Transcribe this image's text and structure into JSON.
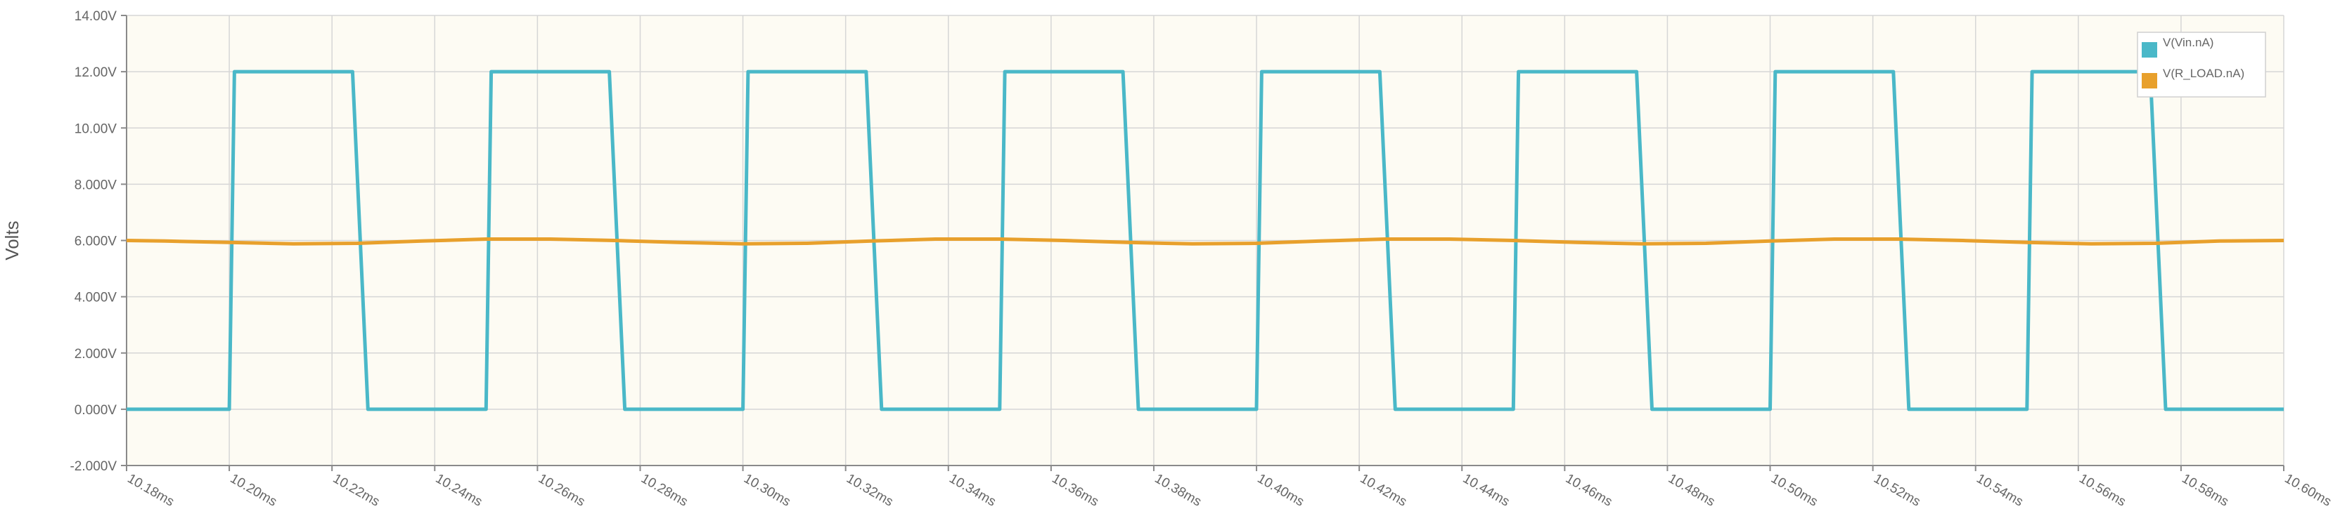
{
  "chart_data": {
    "type": "line",
    "title": "",
    "xlabel": "",
    "ylabel": "Volts",
    "xlim": [
      10.18,
      10.6
    ],
    "ylim": [
      -2.0,
      14.0
    ],
    "x_unit": "ms",
    "x_ticks": [
      10.18,
      10.2,
      10.22,
      10.24,
      10.26,
      10.28,
      10.3,
      10.32,
      10.34,
      10.36,
      10.38,
      10.4,
      10.42,
      10.44,
      10.46,
      10.48,
      10.5,
      10.52,
      10.54,
      10.56,
      10.58,
      10.6
    ],
    "x_tick_labels": [
      "10.18ms",
      "10.20ms",
      "10.22ms",
      "10.24ms",
      "10.26ms",
      "10.28ms",
      "10.30ms",
      "10.32ms",
      "10.34ms",
      "10.36ms",
      "10.38ms",
      "10.40ms",
      "10.42ms",
      "10.44ms",
      "10.46ms",
      "10.48ms",
      "10.50ms",
      "10.52ms",
      "10.54ms",
      "10.56ms",
      "10.58ms",
      "10.60ms"
    ],
    "y_ticks": [
      14,
      12,
      10,
      8,
      6,
      4,
      2,
      0,
      -2
    ],
    "y_tick_labels": [
      "14.00V",
      "12.00V",
      "10.00V",
      "8.000V",
      "6.000V",
      "4.000V",
      "2.000V",
      "0.000V",
      "-2.000V"
    ],
    "grid": true,
    "legend_position": "top-right",
    "plot_background": "#fdfbf3",
    "series": [
      {
        "name": "V(Vin.nA)",
        "color": "#4ab8c8",
        "x": [
          10.18,
          10.2,
          10.201,
          10.224,
          10.227,
          10.25,
          10.251,
          10.274,
          10.277,
          10.3,
          10.301,
          10.324,
          10.327,
          10.35,
          10.351,
          10.374,
          10.377,
          10.4,
          10.401,
          10.424,
          10.427,
          10.45,
          10.451,
          10.474,
          10.477,
          10.5,
          10.501,
          10.524,
          10.527,
          10.55,
          10.551,
          10.574,
          10.577,
          10.6
        ],
        "y": [
          0,
          0,
          12,
          12,
          0,
          0,
          12,
          12,
          0,
          0,
          12,
          12,
          0,
          0,
          12,
          12,
          0,
          0,
          12,
          12,
          0,
          0,
          12,
          12,
          0,
          0,
          12,
          12,
          0,
          0,
          12,
          12,
          0,
          0
        ]
      },
      {
        "name": "V(R_LOAD.nA)",
        "color": "#e8a02c",
        "x": [
          10.18,
          10.1875,
          10.2,
          10.2125,
          10.225,
          10.2375,
          10.25,
          10.2625,
          10.275,
          10.2875,
          10.3,
          10.3125,
          10.325,
          10.3375,
          10.35,
          10.3625,
          10.375,
          10.3875,
          10.4,
          10.4125,
          10.425,
          10.4375,
          10.45,
          10.4625,
          10.475,
          10.4875,
          10.5,
          10.5125,
          10.525,
          10.5375,
          10.55,
          10.5625,
          10.575,
          10.5875,
          10.6
        ],
        "y": [
          6.0,
          5.98,
          5.93,
          5.88,
          5.9,
          5.98,
          6.05,
          6.05,
          6.0,
          5.93,
          5.88,
          5.9,
          5.98,
          6.05,
          6.05,
          6.0,
          5.93,
          5.88,
          5.9,
          5.98,
          6.05,
          6.05,
          6.0,
          5.93,
          5.88,
          5.9,
          5.98,
          6.05,
          6.05,
          6.0,
          5.93,
          5.88,
          5.9,
          5.98,
          6.0
        ]
      }
    ]
  }
}
